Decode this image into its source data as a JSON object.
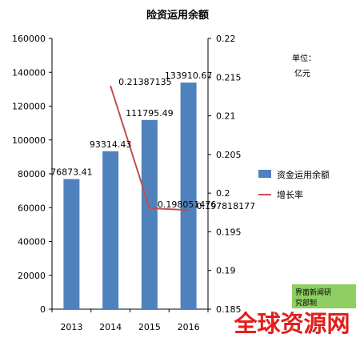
{
  "chart_data": {
    "type": "bar",
    "title": "险资运用余额",
    "categories": [
      "2013",
      "2014",
      "2015",
      "2016"
    ],
    "series": [
      {
        "name": "资金运用余额",
        "type": "bar",
        "axis": "left",
        "color": "#4f81bd",
        "values": [
          76873.41,
          93314.43,
          111795.49,
          133910.67
        ],
        "labels": [
          "76873.41",
          "93314.43",
          "111795.49",
          "133910.67"
        ]
      },
      {
        "name": "增长率",
        "type": "line",
        "axis": "right",
        "color": "#c0504d",
        "values": [
          null,
          0.21387135,
          0.198051476,
          0.197818177
        ],
        "labels": [
          "",
          "0.21387135",
          "0.198051476",
          "0.197818177"
        ]
      }
    ],
    "y_left": {
      "min": 0,
      "max": 160000,
      "step": 20000,
      "ticks": [
        "0",
        "20000",
        "40000",
        "60000",
        "80000",
        "100000",
        "120000",
        "140000",
        "160000"
      ]
    },
    "y_right": {
      "min": 0.185,
      "max": 0.22,
      "step": 0.005,
      "ticks": [
        "0.185",
        "0.19",
        "0.195",
        "0.2",
        "0.205",
        "0.21",
        "0.215",
        "0.22"
      ]
    },
    "grid": false,
    "legend_position": "right",
    "unit_label": "单位：",
    "unit_value": "亿元"
  },
  "watermark": {
    "source_text": "界面新闻研究部制",
    "brand_text": "全球资源网",
    "source_bg": "#8fce62",
    "brand_color": "#e0201c"
  }
}
